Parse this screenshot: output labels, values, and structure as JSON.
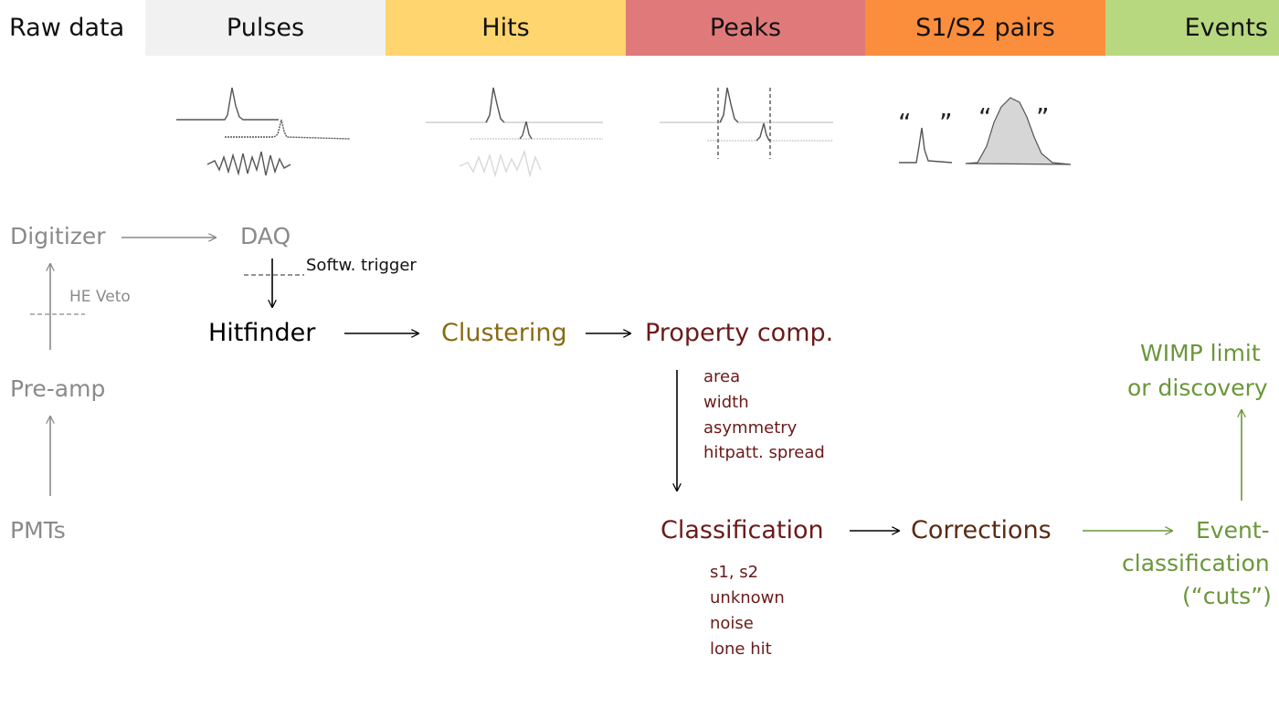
{
  "header": {
    "stages": [
      "Raw data",
      "Pulses",
      "Hits",
      "Peaks",
      "S1/S2 pairs",
      "Events"
    ]
  },
  "hardware": {
    "digitizer": "Digitizer",
    "daq": "DAQ",
    "he_veto": "HE Veto",
    "preamp": "Pre-amp",
    "pmts": "PMTs"
  },
  "processing": {
    "softw_trigger": "Softw. trigger",
    "hitfinder": "Hitfinder",
    "clustering": "Clustering",
    "property_comp": "Property comp.",
    "properties": [
      "area",
      "width",
      "asymmetry",
      "hitpatt. spread"
    ],
    "classification": "Classification",
    "classes": [
      "s1, s2",
      "unknown",
      "noise",
      "lone hit"
    ],
    "corrections": "Corrections",
    "event_classification": [
      "Event-",
      "classification",
      "(“cuts”)"
    ],
    "wimp": [
      "WIMP limit",
      "or discovery"
    ]
  },
  "s1s2_quote_open": "“",
  "s1s2_quote_close": "”",
  "colors": {
    "pulses_band": "#f1f1f1",
    "hits_band": "#fed56e",
    "peaks_band": "#e07a7a",
    "pairs_band": "#fb8e3c",
    "events_band": "#b8d87f",
    "hardware_text": "#8a8a8a",
    "clustering_text": "#8a6a12",
    "peak_text": "#6b1a1a",
    "corrections_text": "#5a2a14",
    "events_text": "#6b963a"
  }
}
